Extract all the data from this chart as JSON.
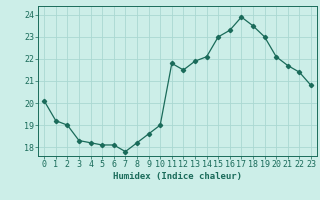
{
  "x": [
    0,
    1,
    2,
    3,
    4,
    5,
    6,
    7,
    8,
    9,
    10,
    11,
    12,
    13,
    14,
    15,
    16,
    17,
    18,
    19,
    20,
    21,
    22,
    23
  ],
  "y": [
    20.1,
    19.2,
    19.0,
    18.3,
    18.2,
    18.1,
    18.1,
    17.8,
    18.2,
    18.6,
    19.0,
    21.8,
    21.5,
    21.9,
    22.1,
    23.0,
    23.3,
    23.9,
    23.5,
    23.0,
    22.1,
    21.7,
    21.4,
    20.8
  ],
  "line_color": "#1a6b5a",
  "marker": "D",
  "marker_size": 2.2,
  "bg_color": "#cceee8",
  "grid_color": "#aad8d2",
  "xlabel": "Humidex (Indice chaleur)",
  "ylabel_ticks": [
    18,
    19,
    20,
    21,
    22,
    23,
    24
  ],
  "xtick_labels": [
    "0",
    "1",
    "2",
    "3",
    "4",
    "5",
    "6",
    "7",
    "8",
    "9",
    "10",
    "11",
    "12",
    "13",
    "14",
    "15",
    "16",
    "17",
    "18",
    "19",
    "20",
    "21",
    "22",
    "23"
  ],
  "ylim": [
    17.6,
    24.4
  ],
  "xlim": [
    -0.5,
    23.5
  ],
  "label_fontsize": 6.5,
  "tick_fontsize": 6.0
}
